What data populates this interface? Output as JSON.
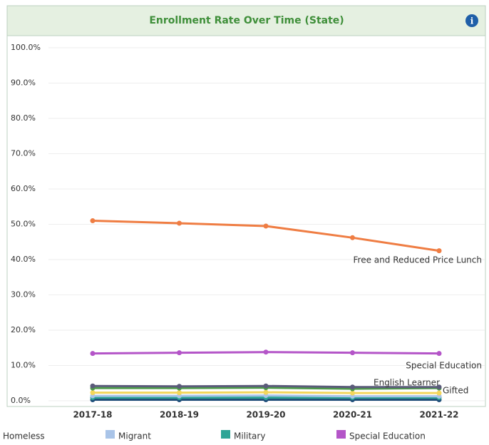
{
  "chart_data": {
    "type": "line",
    "title": "Enrollment Rate Over Time (State)",
    "categories": [
      "2017-18",
      "2018-19",
      "2019-20",
      "2020-21",
      "2021-22"
    ],
    "ylim": [
      0,
      100
    ],
    "yticks": [
      {
        "value": 0,
        "label": "0.0%"
      },
      {
        "value": 10,
        "label": "10.0%"
      },
      {
        "value": 20,
        "label": "20.0%"
      },
      {
        "value": 30,
        "label": "30.0%"
      },
      {
        "value": 40,
        "label": "40.0%"
      },
      {
        "value": 50,
        "label": "50.0%"
      },
      {
        "value": 60,
        "label": "60.0%"
      },
      {
        "value": 70,
        "label": "70.0%"
      },
      {
        "value": 80,
        "label": "80.0%"
      },
      {
        "value": 90,
        "label": "90.0%"
      },
      {
        "value": 100,
        "label": "100.0%"
      }
    ],
    "grid": true,
    "series": [
      {
        "name": "Free and Reduced Price Lunch",
        "color": "#ef7d43",
        "values": [
          51.0,
          50.3,
          49.5,
          46.2,
          42.5
        ],
        "end_label": true
      },
      {
        "name": "Special Education",
        "color": "#b455c8",
        "values": [
          13.4,
          13.6,
          13.8,
          13.6,
          13.4
        ],
        "end_label": true,
        "in_legend": true
      },
      {
        "name": "English Learner",
        "color": "#5b5b7a",
        "values": [
          4.2,
          4.1,
          4.2,
          3.9,
          3.9
        ],
        "end_label": true
      },
      {
        "name": "Gifted",
        "color": "#4d9a4a",
        "values": [
          3.6,
          3.6,
          3.7,
          3.4,
          3.6
        ],
        "end_label": true
      },
      {
        "color": "#f3d65c",
        "values": [
          2.3,
          2.3,
          2.4,
          2.2,
          2.2
        ]
      },
      {
        "name": "Migrant",
        "color": "#a9c4e8",
        "values": [
          1.4,
          1.4,
          1.5,
          1.3,
          1.3
        ],
        "in_legend": true
      },
      {
        "name": "Military",
        "color": "#2ea596",
        "values": [
          0.9,
          0.9,
          0.9,
          0.9,
          0.9
        ],
        "in_legend": true
      },
      {
        "name": "Homeless",
        "color": "#1f4e79",
        "values": [
          0.3,
          0.3,
          0.3,
          0.3,
          0.3
        ],
        "in_legend": true
      }
    ]
  }
}
